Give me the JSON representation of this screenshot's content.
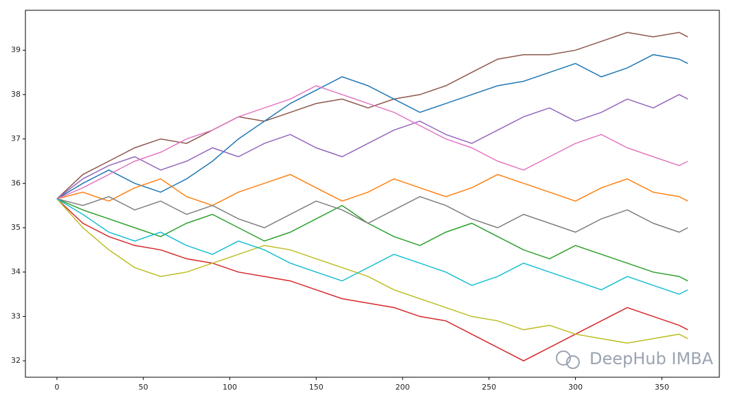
{
  "chart_data": {
    "type": "line",
    "watermark": "DeepHub IMBA",
    "x": [
      0,
      15,
      30,
      45,
      60,
      75,
      90,
      105,
      120,
      135,
      150,
      165,
      180,
      195,
      210,
      225,
      240,
      255,
      270,
      285,
      300,
      315,
      330,
      345,
      360,
      365
    ],
    "series": [
      {
        "color": "#8c564b",
        "values": [
          35.65,
          36.2,
          36.5,
          36.8,
          37.0,
          36.9,
          37.2,
          37.5,
          37.4,
          37.6,
          37.8,
          37.9,
          37.7,
          37.9,
          38.0,
          38.2,
          38.5,
          38.8,
          38.9,
          38.9,
          39.0,
          39.2,
          39.4,
          39.3,
          39.4,
          39.3
        ]
      },
      {
        "color": "#d62728",
        "values": [
          35.65,
          35.1,
          34.8,
          34.6,
          34.5,
          34.3,
          34.2,
          34.0,
          33.9,
          33.8,
          33.6,
          33.4,
          33.3,
          33.2,
          33.0,
          32.9,
          32.6,
          32.3,
          32.0,
          32.3,
          32.6,
          32.9,
          33.2,
          33.0,
          32.8,
          32.7
        ]
      },
      {
        "color": "#bcbd22",
        "values": [
          35.65,
          35.0,
          34.5,
          34.1,
          33.9,
          34.0,
          34.2,
          34.4,
          34.6,
          34.5,
          34.3,
          34.1,
          33.9,
          33.6,
          33.4,
          33.2,
          33.0,
          32.9,
          32.7,
          32.8,
          32.6,
          32.5,
          32.4,
          32.5,
          32.6,
          32.5
        ]
      },
      {
        "color": "#1f77b4",
        "values": [
          35.65,
          36.0,
          36.3,
          36.0,
          35.8,
          36.1,
          36.5,
          37.0,
          37.4,
          37.8,
          38.1,
          38.4,
          38.2,
          37.9,
          37.6,
          37.8,
          38.0,
          38.2,
          38.3,
          38.5,
          38.7,
          38.4,
          38.6,
          38.9,
          38.8,
          38.7
        ]
      },
      {
        "color": "#ff7f0e",
        "values": [
          35.65,
          35.8,
          35.6,
          35.9,
          36.1,
          35.7,
          35.5,
          35.8,
          36.0,
          36.2,
          35.9,
          35.6,
          35.8,
          36.1,
          35.9,
          35.7,
          35.9,
          36.2,
          36.0,
          35.8,
          35.6,
          35.9,
          36.1,
          35.8,
          35.7,
          35.6
        ]
      },
      {
        "color": "#2ca02c",
        "values": [
          35.65,
          35.4,
          35.2,
          35.0,
          34.8,
          35.1,
          35.3,
          35.0,
          34.7,
          34.9,
          35.2,
          35.5,
          35.1,
          34.8,
          34.6,
          34.9,
          35.1,
          34.8,
          34.5,
          34.3,
          34.6,
          34.4,
          34.2,
          34.0,
          33.9,
          33.8
        ]
      },
      {
        "color": "#9467bd",
        "values": [
          35.65,
          36.1,
          36.4,
          36.6,
          36.3,
          36.5,
          36.8,
          36.6,
          36.9,
          37.1,
          36.8,
          36.6,
          36.9,
          37.2,
          37.4,
          37.1,
          36.9,
          37.2,
          37.5,
          37.7,
          37.4,
          37.6,
          37.9,
          37.7,
          38.0,
          37.9
        ]
      },
      {
        "color": "#e377c2",
        "values": [
          35.65,
          35.9,
          36.2,
          36.5,
          36.7,
          37.0,
          37.2,
          37.5,
          37.7,
          37.9,
          38.2,
          38.0,
          37.8,
          37.6,
          37.3,
          37.0,
          36.8,
          36.5,
          36.3,
          36.6,
          36.9,
          37.1,
          36.8,
          36.6,
          36.4,
          36.5
        ]
      },
      {
        "color": "#7f7f7f",
        "values": [
          35.65,
          35.5,
          35.7,
          35.4,
          35.6,
          35.3,
          35.5,
          35.2,
          35.0,
          35.3,
          35.6,
          35.4,
          35.1,
          35.4,
          35.7,
          35.5,
          35.2,
          35.0,
          35.3,
          35.1,
          34.9,
          35.2,
          35.4,
          35.1,
          34.9,
          35.0
        ]
      },
      {
        "color": "#17becf",
        "values": [
          35.65,
          35.3,
          34.9,
          34.7,
          34.9,
          34.6,
          34.4,
          34.7,
          34.5,
          34.2,
          34.0,
          33.8,
          34.1,
          34.4,
          34.2,
          34.0,
          33.7,
          33.9,
          34.2,
          34.0,
          33.8,
          33.6,
          33.9,
          33.7,
          33.5,
          33.6
        ]
      }
    ],
    "xlim": [
      -18.25,
      383.25
    ],
    "ylim": [
      31.63,
      39.9
    ],
    "xticks": [
      0,
      50,
      100,
      150,
      200,
      250,
      300,
      350
    ],
    "yticks": [
      32,
      33,
      34,
      35,
      36,
      37,
      38,
      39
    ],
    "grid": false
  }
}
